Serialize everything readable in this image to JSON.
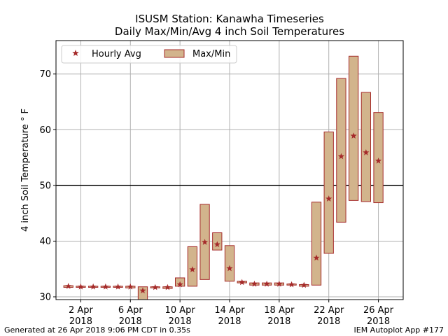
{
  "chart_data": {
    "type": "bar",
    "title": "ISUSM Station: Kanawha Timeseries",
    "subtitle": "Daily Max/Min/Avg 4 inch Soil Temperatures",
    "ylabel": "4 inch Soil Temperature ° F",
    "xlabel": "",
    "ylim": [
      29.5,
      76
    ],
    "xlim_day": [
      0,
      28
    ],
    "yticks": [
      30,
      40,
      50,
      60,
      70
    ],
    "xticks": [
      {
        "day": 2,
        "line1": "2 Apr",
        "line2": "2018"
      },
      {
        "day": 6,
        "line1": "6 Apr",
        "line2": "2018"
      },
      {
        "day": 10,
        "line1": "10 Apr",
        "line2": "2018"
      },
      {
        "day": 14,
        "line1": "14 Apr",
        "line2": "2018"
      },
      {
        "day": 18,
        "line1": "18 Apr",
        "line2": "2018"
      },
      {
        "day": 22,
        "line1": "22 Apr",
        "line2": "2018"
      },
      {
        "day": 26,
        "line1": "26 Apr",
        "line2": "2018"
      }
    ],
    "grid": true,
    "reference_line": 50,
    "legend_position": "top-left",
    "legend": [
      {
        "label": "Hourly Avg",
        "marker": "star"
      },
      {
        "label": "Max/Min",
        "marker": "box"
      }
    ],
    "colors": {
      "box_fill": "#d2b48c",
      "box_edge": "#a52a2a",
      "avg_marker": "#a52a2a",
      "reference": "#000000",
      "grid": "#b0b0b0"
    },
    "days": [
      1,
      2,
      3,
      4,
      5,
      6,
      7,
      8,
      9,
      10,
      11,
      12,
      13,
      14,
      15,
      16,
      17,
      18,
      19,
      20,
      21,
      22,
      23,
      24,
      25,
      26
    ],
    "max": [
      32.0,
      31.9,
      31.9,
      31.9,
      31.9,
      31.9,
      31.8,
      31.8,
      31.8,
      33.4,
      39.0,
      46.6,
      41.5,
      39.2,
      32.8,
      32.5,
      32.5,
      32.5,
      32.3,
      32.2,
      47.0,
      59.6,
      69.2,
      73.2,
      66.7,
      63.1
    ],
    "min": [
      31.7,
      31.7,
      31.7,
      31.7,
      31.7,
      31.6,
      29.5,
      31.6,
      31.5,
      31.9,
      31.9,
      33.1,
      38.4,
      32.8,
      32.5,
      32.1,
      32.1,
      32.1,
      32.1,
      31.9,
      32.1,
      37.8,
      43.4,
      47.3,
      47.1,
      46.9
    ],
    "avg": [
      31.9,
      31.8,
      31.8,
      31.8,
      31.8,
      31.8,
      31.1,
      31.7,
      31.7,
      32.2,
      34.9,
      39.8,
      39.4,
      35.1,
      32.6,
      32.3,
      32.3,
      32.3,
      32.2,
      32.1,
      37.0,
      47.6,
      55.2,
      58.9,
      55.9,
      54.4
    ]
  },
  "footer": {
    "left": "Generated at 26 Apr 2018 9:06 PM CDT in 0.35s",
    "right": "IEM Autoplot App #177"
  }
}
